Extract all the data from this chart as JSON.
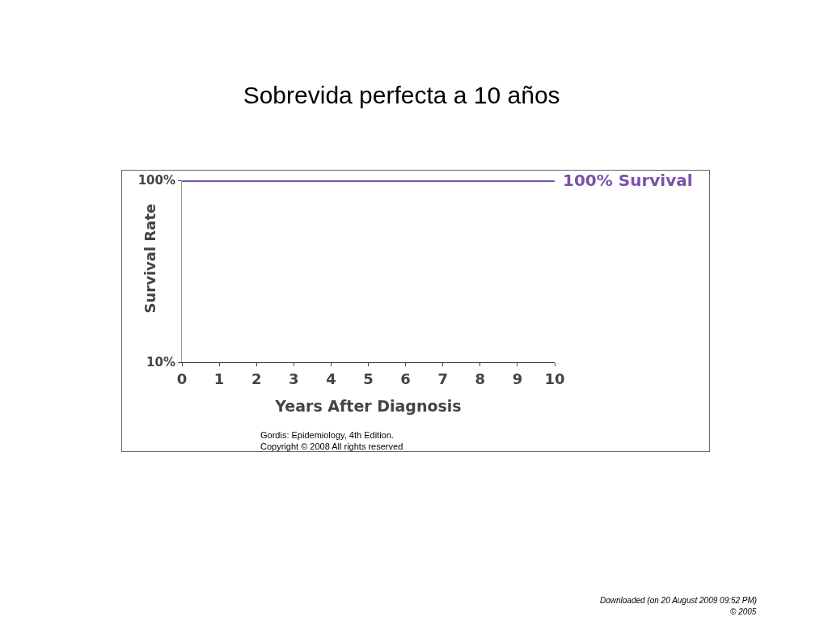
{
  "chart_data": {
    "type": "line",
    "title": "Sobrevida perfecta a 10 años",
    "xlabel": "Years After Diagnosis",
    "ylabel": "Survival Rate",
    "x": [
      0,
      10
    ],
    "series": [
      {
        "name": "100% Survival",
        "color": "#7b52ab",
        "values": [
          100,
          100
        ]
      }
    ],
    "xlim": [
      0,
      10
    ],
    "xticks": [
      0,
      1,
      2,
      3,
      4,
      5,
      6,
      7,
      8,
      9,
      10
    ],
    "ylim": [
      10,
      100
    ],
    "yticks": [
      {
        "value": 10,
        "label": "10%"
      },
      {
        "value": 100,
        "label": "100%"
      }
    ],
    "grid": false,
    "line_style": "solid",
    "annotations": [
      "Gordis: Epidemiology, 4th Edition.",
      "Copyright © 2008 All rights reserved",
      "Downloaded (on 20 August 2009 09:52 PM)",
      "© 2005"
    ]
  }
}
